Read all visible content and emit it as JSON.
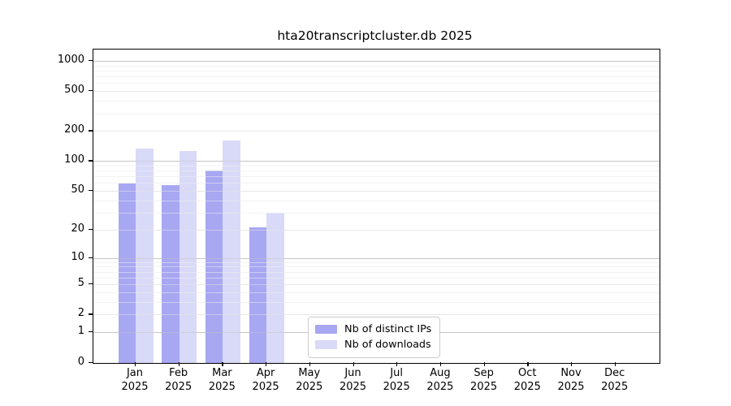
{
  "title": "hta20transcriptcluster.db 2025",
  "chart_data": {
    "type": "bar",
    "title": "hta20transcriptcluster.db 2025",
    "categories": [
      "Jan 2025",
      "Feb 2025",
      "Mar 2025",
      "Apr 2025",
      "May 2025",
      "Jun 2025",
      "Jul 2025",
      "Aug 2025",
      "Sep 2025",
      "Oct 2025",
      "Nov 2025",
      "Dec 2025"
    ],
    "series": [
      {
        "name": "Nb of distinct IPs",
        "color": "#a7a7f2",
        "values": [
          59,
          57,
          80,
          21,
          0,
          0,
          0,
          0,
          0,
          0,
          0,
          0
        ]
      },
      {
        "name": "Nb of downloads",
        "color": "#d9d9f8",
        "values": [
          133,
          125,
          160,
          30,
          0,
          0,
          0,
          0,
          0,
          0,
          0,
          0
        ]
      }
    ],
    "xlabel": "",
    "ylabel": "",
    "yscale": "log1p",
    "ylim": [
      0,
      1300
    ],
    "yticks": [
      0,
      1,
      2,
      5,
      10,
      20,
      50,
      100,
      200,
      500,
      1000
    ],
    "grid": "horizontal, log minor + major decades",
    "legend_position": "bottom-center-inside",
    "colors": {
      "grid_major": "#c6c6c6",
      "grid_mid": "#e8e8e8",
      "grid_minor": "#f3f3f3",
      "axis": "#000000",
      "background": "#ffffff"
    }
  }
}
